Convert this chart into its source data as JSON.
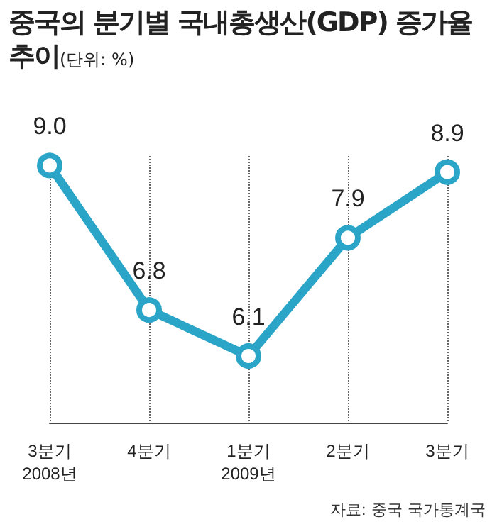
{
  "chart_data": {
    "type": "line",
    "title": "중국의 분기별 국내총생산(GDP) 증가율 추이",
    "subtitle": "(단위: %)",
    "categories": [
      "3분기\n2008년",
      "4분기",
      "1분기\n2009년",
      "2분기",
      "3분기"
    ],
    "series": [
      {
        "color": "#2aa5c8",
        "values": [
          9.0,
          6.8,
          6.1,
          7.9,
          8.9
        ],
        "value_labels": [
          "9.0",
          "6.8",
          "6.1",
          "7.9",
          "8.9"
        ]
      }
    ],
    "marker": "circle",
    "grid": "x",
    "annotations": [
      "자료: 중국 국가통계국"
    ]
  }
}
